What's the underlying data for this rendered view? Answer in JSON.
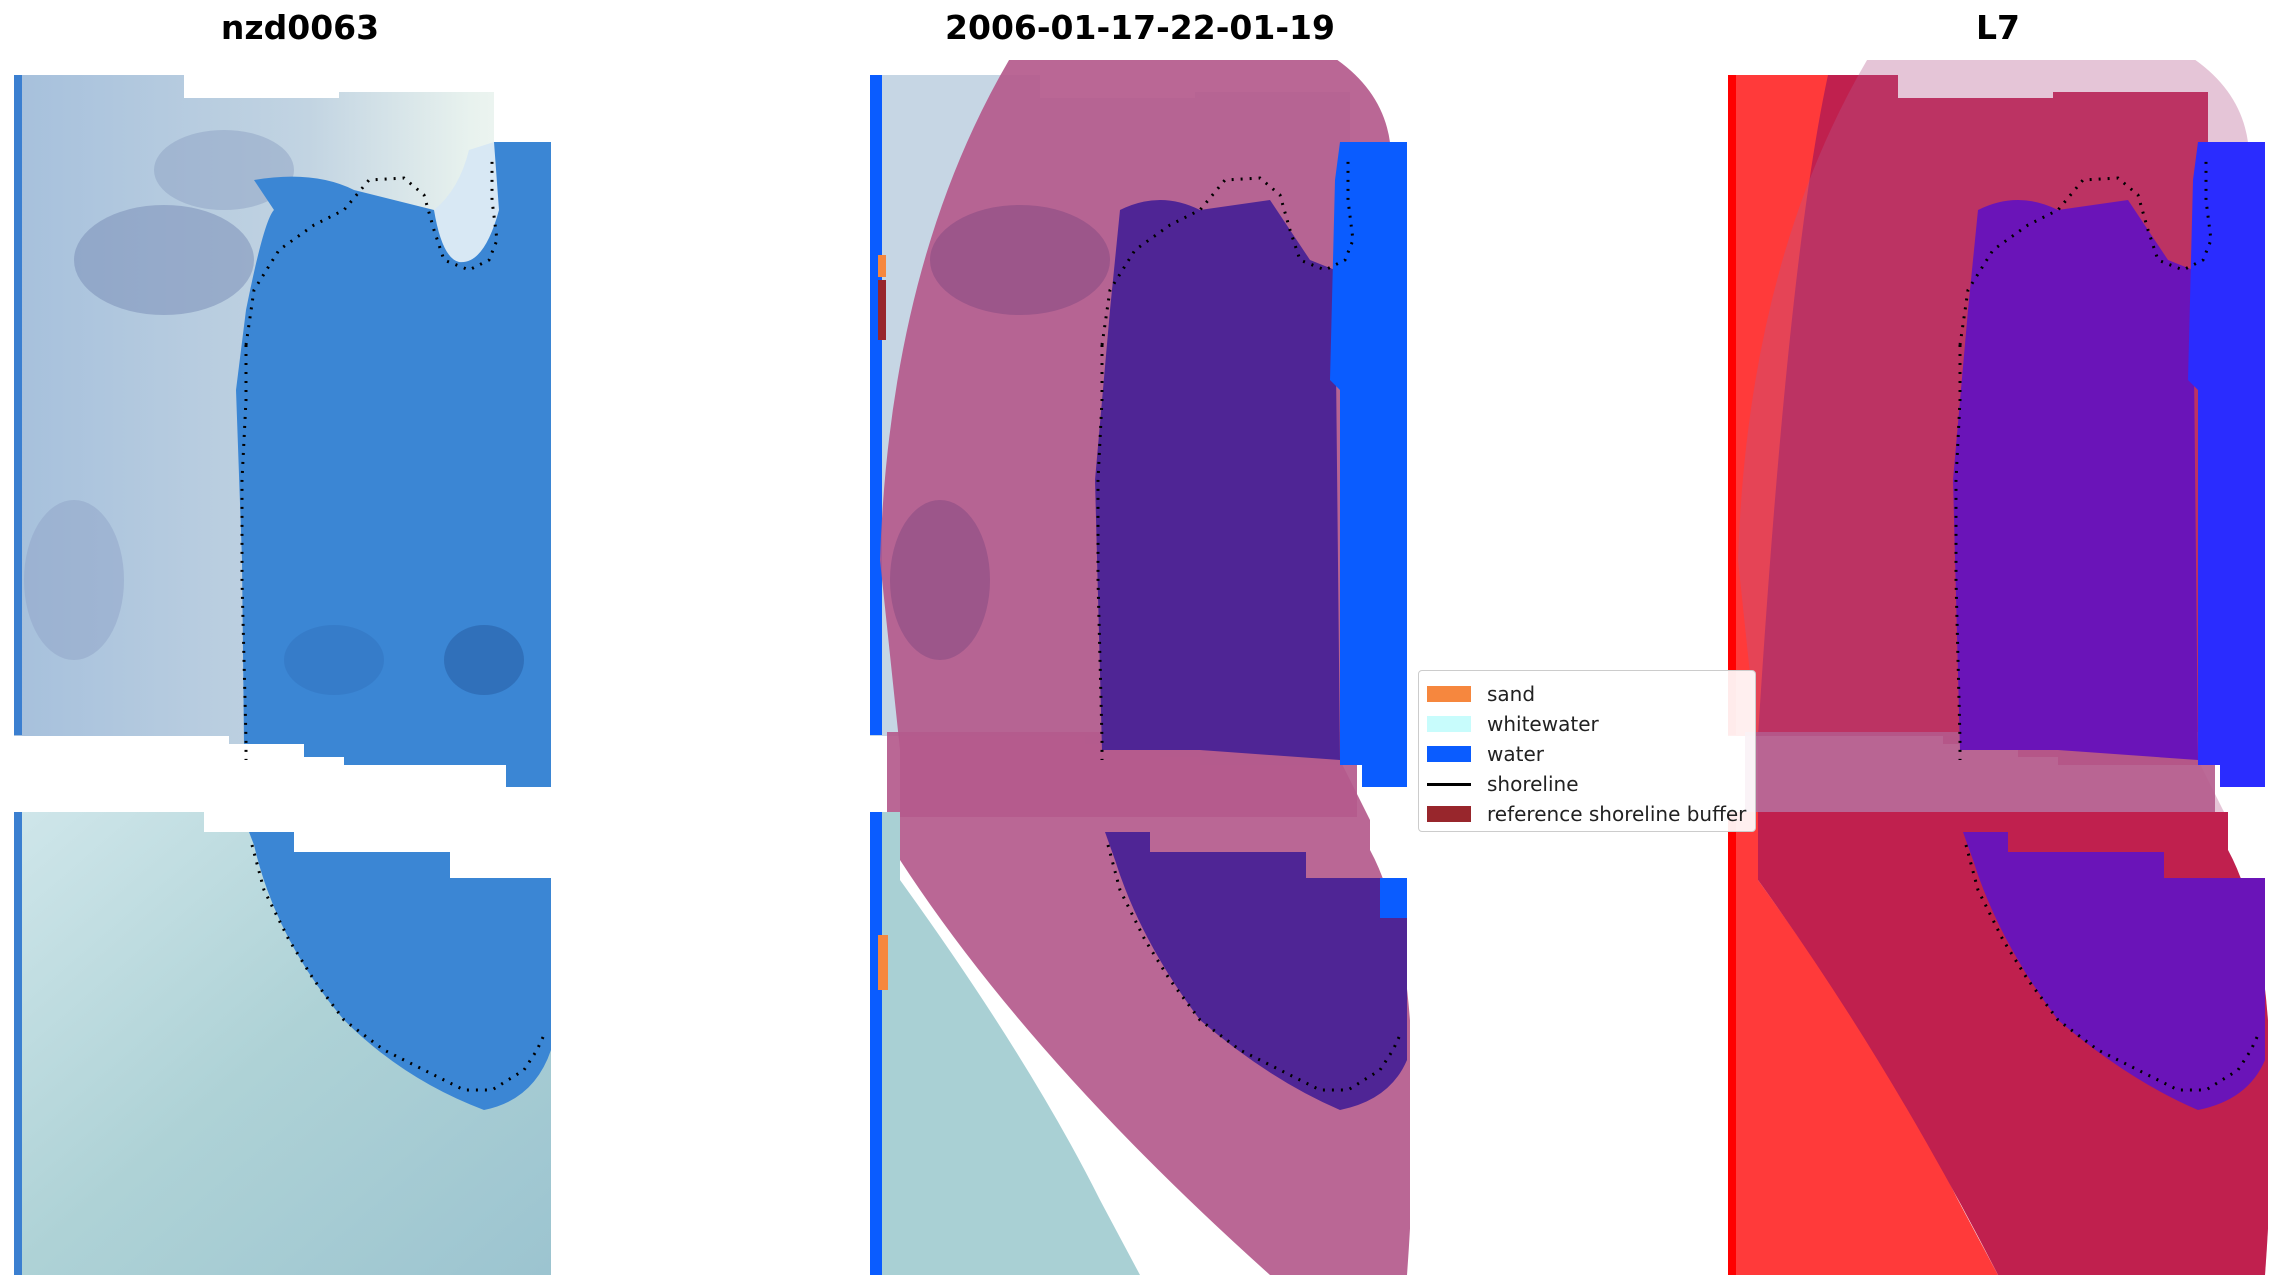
{
  "panels": [
    {
      "title": "nzd0063"
    },
    {
      "title": "2006-01-17-22-01-19"
    },
    {
      "title": "L7"
    }
  ],
  "legend": {
    "items": [
      {
        "label": "sand",
        "kind": "patch",
        "color": "#f6873e"
      },
      {
        "label": "whitewater",
        "kind": "patch",
        "color": "#c8fcfc"
      },
      {
        "label": "water",
        "kind": "patch",
        "color": "#0a5cff"
      },
      {
        "label": "shoreline",
        "kind": "line",
        "color": "#000000"
      },
      {
        "label": "reference shoreline buffer",
        "kind": "patch",
        "color": "#98262c"
      }
    ]
  },
  "colors": {
    "water_rgb": "#3b86d4",
    "land_rgb": "#b8c8d8",
    "beach_rgb": "#e6f0ec",
    "water_class": "#0a5cff",
    "buffer_overlay": "#b45a8c",
    "water_in_buffer": "#4f2595",
    "sand_class": "#f6873e",
    "land_l7": "#c0204e",
    "land_l7_edge": "#ff3a3a",
    "water_l7": "#6a14b8",
    "water_l7_open": "#2a2cff"
  }
}
